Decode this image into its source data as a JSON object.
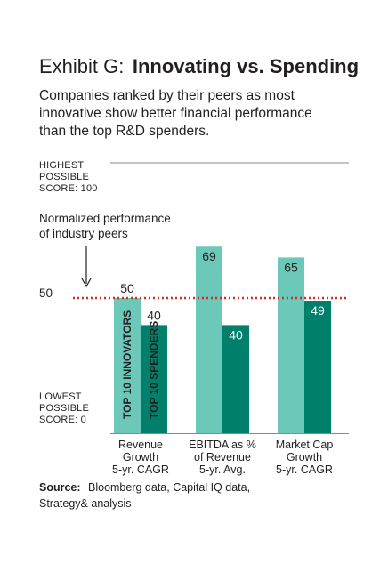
{
  "chart_data": {
    "type": "bar",
    "title_prefix": "Exhibit G:",
    "title_main": "Innovating vs. Spending",
    "subtitle": [
      "Companies ranked by their peers as most",
      "innovative show better financial performance",
      "than the top R&D spenders."
    ],
    "top_label": [
      "HIGHEST",
      "POSSIBLE",
      "SCORE: 100"
    ],
    "bottom_label": [
      "LOWEST",
      "POSSIBLE",
      "SCORE: 0"
    ],
    "reference": {
      "value": 50,
      "label": "50",
      "note": [
        "Normalized performance",
        "of industry peers"
      ]
    },
    "ylim": [
      0,
      100
    ],
    "categories": [
      [
        "Revenue",
        "Growth",
        "5-yr. CAGR"
      ],
      [
        "EBITDA as %",
        "of Revenue",
        "5-yr. Avg."
      ],
      [
        "Market Cap",
        "Growth",
        "5-yr. CAGR"
      ]
    ],
    "series": [
      {
        "name": "TOP 10 INNOVATORS",
        "color": "#6cc8b8",
        "values": [
          50,
          69,
          65
        ]
      },
      {
        "name": "TOP 10 SPENDERS",
        "color": "#00806a",
        "values": [
          40,
          40,
          49
        ]
      }
    ],
    "source_label": "Source:",
    "source_text": [
      "Bloomberg data, Capital IQ data,",
      "Strategy& analysis"
    ]
  }
}
